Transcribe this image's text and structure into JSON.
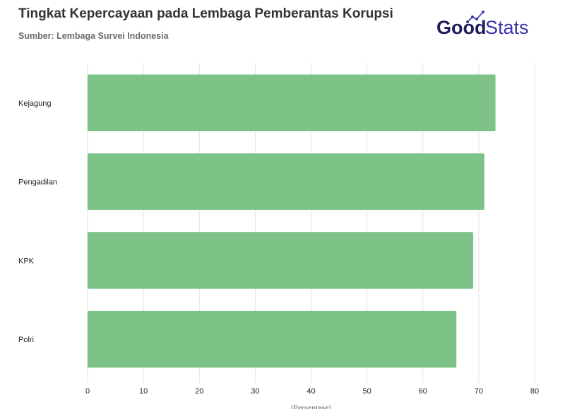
{
  "header": {
    "title": "Tingkat Kepercayaan pada Lembaga Pemberantas Korupsi",
    "subtitle": "Sumber: Lembaga Survei Indonesia"
  },
  "logo": {
    "text_bold": "Good",
    "text_light": "Stats",
    "icon": "trend-line-icon",
    "colors": {
      "dark": "#1f1d5c",
      "accent": "#3a36a8"
    }
  },
  "chart_data": {
    "type": "bar",
    "orientation": "horizontal",
    "categories": [
      "Kejagung",
      "Pengadilan",
      "KPK",
      "Polri"
    ],
    "values": [
      73,
      71,
      69,
      66
    ],
    "xlabel": "(Persentase)",
    "xlim": [
      0,
      80
    ],
    "xticks": [
      0,
      10,
      20,
      30,
      40,
      50,
      60,
      70,
      80
    ],
    "grid": true,
    "legend": "none",
    "bar_color": "#7dc287"
  }
}
